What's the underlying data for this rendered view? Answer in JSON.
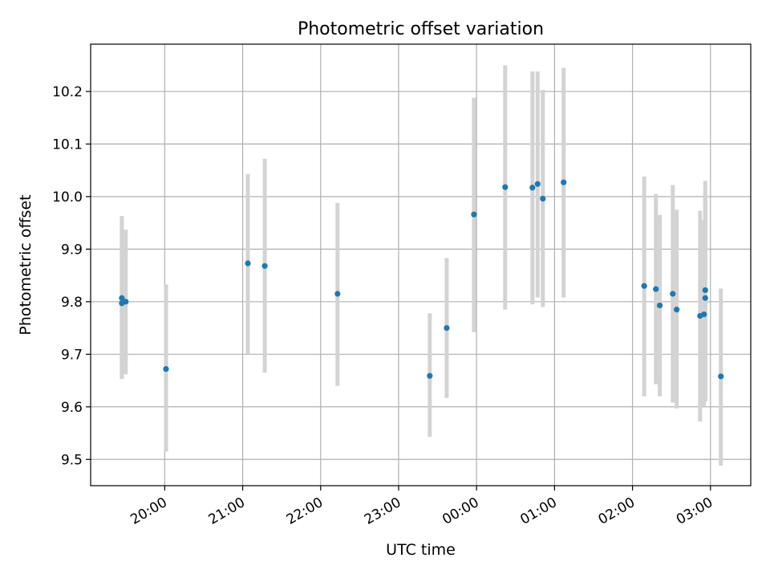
{
  "chart_data": {
    "type": "scatter",
    "title": "Photometric offset variation",
    "xlabel": "UTC time",
    "ylabel": "Photometric offset",
    "x_is_time": true,
    "xlim": [
      "19:03",
      "27:31"
    ],
    "ylim": [
      9.45,
      10.29
    ],
    "grid": true,
    "x_ticks": [
      {
        "value": "20:00",
        "label": "20:00"
      },
      {
        "value": "21:00",
        "label": "21:00"
      },
      {
        "value": "22:00",
        "label": "22:00"
      },
      {
        "value": "23:00",
        "label": "23:00"
      },
      {
        "value": "24:00",
        "label": "00:00"
      },
      {
        "value": "25:00",
        "label": "01:00"
      },
      {
        "value": "26:00",
        "label": "02:00"
      },
      {
        "value": "27:00",
        "label": "03:00"
      }
    ],
    "y_ticks": [
      9.5,
      9.6,
      9.7,
      9.8,
      9.9,
      10.0,
      10.1,
      10.2
    ],
    "colors": {
      "point": "#1f77b4",
      "errorbar": "#d3d3d3",
      "grid": "#b0b0b0"
    },
    "series": [
      {
        "points": [
          {
            "x": "19:27",
            "y": 9.807,
            "ylow": 9.653,
            "yhigh": 9.963
          },
          {
            "x": "19:27",
            "y": 9.797,
            "ylow": 9.655,
            "yhigh": 9.937
          },
          {
            "x": "19:30",
            "y": 9.8,
            "ylow": 9.662,
            "yhigh": 9.937
          },
          {
            "x": "20:01",
            "y": 9.672,
            "ylow": 9.515,
            "yhigh": 9.833
          },
          {
            "x": "21:04",
            "y": 9.873,
            "ylow": 9.7,
            "yhigh": 10.043
          },
          {
            "x": "21:17",
            "y": 9.868,
            "ylow": 9.665,
            "yhigh": 10.072
          },
          {
            "x": "22:13",
            "y": 9.815,
            "ylow": 9.64,
            "yhigh": 9.988
          },
          {
            "x": "23:24",
            "y": 9.659,
            "ylow": 9.543,
            "yhigh": 9.778
          },
          {
            "x": "23:37",
            "y": 9.75,
            "ylow": 9.617,
            "yhigh": 9.883
          },
          {
            "x": "23:58",
            "y": 9.966,
            "ylow": 9.742,
            "yhigh": 10.188
          },
          {
            "x": "24:22",
            "y": 10.018,
            "ylow": 9.785,
            "yhigh": 10.25
          },
          {
            "x": "24:43",
            "y": 10.017,
            "ylow": 9.795,
            "yhigh": 10.238
          },
          {
            "x": "24:47",
            "y": 10.024,
            "ylow": 9.808,
            "yhigh": 10.238
          },
          {
            "x": "24:51",
            "y": 9.996,
            "ylow": 9.79,
            "yhigh": 10.203
          },
          {
            "x": "25:07",
            "y": 10.027,
            "ylow": 9.808,
            "yhigh": 10.245
          },
          {
            "x": "26:09",
            "y": 9.83,
            "ylow": 9.62,
            "yhigh": 10.038
          },
          {
            "x": "26:18",
            "y": 9.824,
            "ylow": 9.643,
            "yhigh": 10.005
          },
          {
            "x": "26:21",
            "y": 9.793,
            "ylow": 9.62,
            "yhigh": 9.965
          },
          {
            "x": "26:31",
            "y": 9.815,
            "ylow": 9.608,
            "yhigh": 10.022
          },
          {
            "x": "26:34",
            "y": 9.785,
            "ylow": 9.597,
            "yhigh": 9.975
          },
          {
            "x": "26:52",
            "y": 9.773,
            "ylow": 9.572,
            "yhigh": 9.973
          },
          {
            "x": "26:55",
            "y": 9.776,
            "ylow": 9.6,
            "yhigh": 9.955
          },
          {
            "x": "26:56",
            "y": 9.807,
            "ylow": 9.61,
            "yhigh": 10.005
          },
          {
            "x": "26:56",
            "y": 9.822,
            "ylow": 9.615,
            "yhigh": 10.03
          },
          {
            "x": "27:08",
            "y": 9.658,
            "ylow": 9.488,
            "yhigh": 9.825
          }
        ]
      }
    ]
  }
}
